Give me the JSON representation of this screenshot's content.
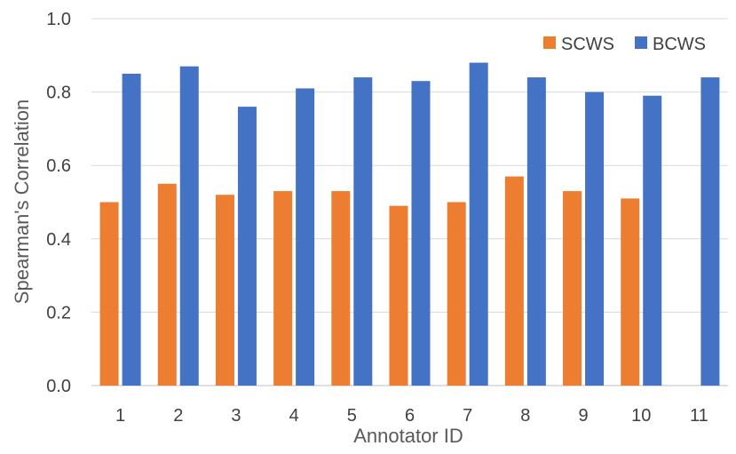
{
  "chart_data": {
    "type": "bar",
    "categories": [
      "1",
      "2",
      "3",
      "4",
      "5",
      "6",
      "7",
      "8",
      "9",
      "10",
      "11"
    ],
    "series": [
      {
        "name": "SCWS",
        "color": "#ed7d31",
        "values": [
          0.5,
          0.55,
          0.52,
          0.53,
          0.53,
          0.49,
          0.5,
          0.57,
          0.53,
          0.51,
          null
        ]
      },
      {
        "name": "BCWS",
        "color": "#4472c4",
        "values": [
          0.85,
          0.87,
          0.76,
          0.81,
          0.84,
          0.83,
          0.88,
          0.84,
          0.8,
          0.79,
          0.84
        ]
      }
    ],
    "title": "",
    "xlabel": "Annotator ID",
    "ylabel": "Spearman's Correlation",
    "ylim": [
      0,
      1.0
    ],
    "yticks": [
      "0.0",
      "0.2",
      "0.4",
      "0.6",
      "0.8",
      "1.0"
    ],
    "grid": true,
    "legend_position": "top-right"
  }
}
